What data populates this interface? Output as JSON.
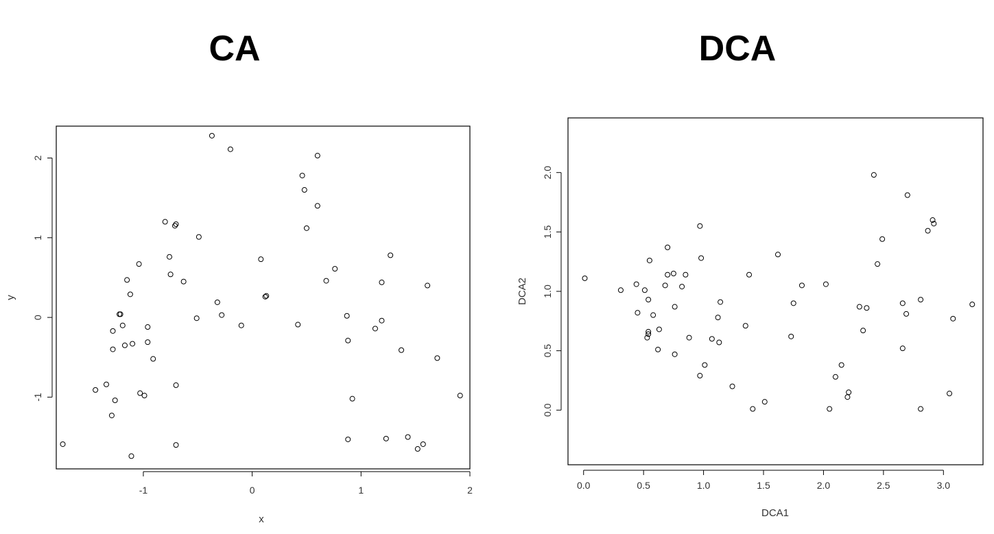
{
  "chart_data": [
    {
      "type": "scatter",
      "title": "CA",
      "xlabel": "x",
      "ylabel": "y",
      "xlim": [
        -1.8,
        2.0
      ],
      "ylim": [
        -1.9,
        2.4
      ],
      "xticks": [
        -1,
        0,
        1,
        2
      ],
      "xtick_labels": [
        "-1",
        "0",
        "1",
        "2"
      ],
      "yticks": [
        -1,
        0,
        1,
        2
      ],
      "ytick_labels": [
        "-1",
        "0",
        "1",
        "2"
      ],
      "grid": false,
      "points": [
        {
          "x": -0.37,
          "y": 2.28
        },
        {
          "x": -0.2,
          "y": 2.11
        },
        {
          "x": 0.6,
          "y": 2.03
        },
        {
          "x": 0.46,
          "y": 1.78
        },
        {
          "x": 0.48,
          "y": 1.6
        },
        {
          "x": 0.6,
          "y": 1.4
        },
        {
          "x": 0.5,
          "y": 1.12
        },
        {
          "x": -0.8,
          "y": 1.2
        },
        {
          "x": -0.7,
          "y": 1.17
        },
        {
          "x": -0.71,
          "y": 1.15
        },
        {
          "x": -0.49,
          "y": 1.01
        },
        {
          "x": -0.76,
          "y": 0.76
        },
        {
          "x": 0.08,
          "y": 0.73
        },
        {
          "x": 1.27,
          "y": 0.78
        },
        {
          "x": -1.04,
          "y": 0.67
        },
        {
          "x": 0.76,
          "y": 0.61
        },
        {
          "x": -0.75,
          "y": 0.54
        },
        {
          "x": -1.15,
          "y": 0.47
        },
        {
          "x": -0.63,
          "y": 0.45
        },
        {
          "x": 0.68,
          "y": 0.46
        },
        {
          "x": 1.19,
          "y": 0.44
        },
        {
          "x": 1.61,
          "y": 0.4
        },
        {
          "x": -1.12,
          "y": 0.29
        },
        {
          "x": 0.12,
          "y": 0.26
        },
        {
          "x": 0.13,
          "y": 0.27
        },
        {
          "x": -0.32,
          "y": 0.19
        },
        {
          "x": -1.22,
          "y": 0.04
        },
        {
          "x": -1.21,
          "y": 0.04
        },
        {
          "x": -0.28,
          "y": 0.03
        },
        {
          "x": 0.87,
          "y": 0.02
        },
        {
          "x": -0.51,
          "y": -0.01
        },
        {
          "x": 1.19,
          "y": -0.04
        },
        {
          "x": -1.19,
          "y": -0.1
        },
        {
          "x": -0.1,
          "y": -0.1
        },
        {
          "x": 0.42,
          "y": -0.09
        },
        {
          "x": -0.96,
          "y": -0.12
        },
        {
          "x": 1.13,
          "y": -0.14
        },
        {
          "x": -1.28,
          "y": -0.17
        },
        {
          "x": 0.88,
          "y": -0.29
        },
        {
          "x": -0.96,
          "y": -0.31
        },
        {
          "x": -1.1,
          "y": -0.33
        },
        {
          "x": -1.17,
          "y": -0.35
        },
        {
          "x": -1.28,
          "y": -0.4
        },
        {
          "x": 1.37,
          "y": -0.41
        },
        {
          "x": -0.91,
          "y": -0.52
        },
        {
          "x": 1.7,
          "y": -0.51
        },
        {
          "x": -1.34,
          "y": -0.84
        },
        {
          "x": -0.7,
          "y": -0.85
        },
        {
          "x": -1.44,
          "y": -0.91
        },
        {
          "x": -1.03,
          "y": -0.95
        },
        {
          "x": -0.99,
          "y": -0.98
        },
        {
          "x": 1.91,
          "y": -0.98
        },
        {
          "x": -1.26,
          "y": -1.04
        },
        {
          "x": 0.92,
          "y": -1.02
        },
        {
          "x": -1.29,
          "y": -1.23
        },
        {
          "x": 0.88,
          "y": -1.53
        },
        {
          "x": 1.23,
          "y": -1.52
        },
        {
          "x": 1.43,
          "y": -1.5
        },
        {
          "x": -1.74,
          "y": -1.59
        },
        {
          "x": -0.7,
          "y": -1.6
        },
        {
          "x": 1.57,
          "y": -1.59
        },
        {
          "x": 1.52,
          "y": -1.65
        },
        {
          "x": -1.11,
          "y": -1.74
        }
      ]
    },
    {
      "type": "scatter",
      "title": "DCA",
      "xlabel": "DCA1",
      "ylabel": "DCA2",
      "xlim": [
        -0.13,
        3.33
      ],
      "ylim": [
        -0.46,
        2.46
      ],
      "xticks": [
        0.0,
        0.5,
        1.0,
        1.5,
        2.0,
        2.5,
        3.0
      ],
      "xtick_labels": [
        "0.0",
        "0.5",
        "1.0",
        "1.5",
        "2.0",
        "2.5",
        "3.0"
      ],
      "yticks": [
        0.0,
        0.5,
        1.0,
        1.5,
        2.0
      ],
      "ytick_labels": [
        "0.0",
        "0.5",
        "1.0",
        "1.5",
        "2.0"
      ],
      "grid": false,
      "points": [
        {
          "x": 2.42,
          "y": 1.98
        },
        {
          "x": 2.7,
          "y": 1.81
        },
        {
          "x": 2.91,
          "y": 1.6
        },
        {
          "x": 2.92,
          "y": 1.57
        },
        {
          "x": 0.97,
          "y": 1.55
        },
        {
          "x": 2.87,
          "y": 1.51
        },
        {
          "x": 2.49,
          "y": 1.44
        },
        {
          "x": 0.7,
          "y": 1.37
        },
        {
          "x": 1.62,
          "y": 1.31
        },
        {
          "x": 0.98,
          "y": 1.28
        },
        {
          "x": 0.55,
          "y": 1.26
        },
        {
          "x": 2.45,
          "y": 1.23
        },
        {
          "x": 0.75,
          "y": 1.15
        },
        {
          "x": 0.7,
          "y": 1.14
        },
        {
          "x": 0.85,
          "y": 1.14
        },
        {
          "x": 1.38,
          "y": 1.14
        },
        {
          "x": 0.01,
          "y": 1.11
        },
        {
          "x": 0.44,
          "y": 1.06
        },
        {
          "x": 0.68,
          "y": 1.05
        },
        {
          "x": 1.82,
          "y": 1.05
        },
        {
          "x": 2.02,
          "y": 1.06
        },
        {
          "x": 0.82,
          "y": 1.04
        },
        {
          "x": 0.31,
          "y": 1.01
        },
        {
          "x": 0.51,
          "y": 1.01
        },
        {
          "x": 0.54,
          "y": 0.93
        },
        {
          "x": 2.81,
          "y": 0.93
        },
        {
          "x": 1.14,
          "y": 0.91
        },
        {
          "x": 1.75,
          "y": 0.9
        },
        {
          "x": 2.66,
          "y": 0.9
        },
        {
          "x": 3.24,
          "y": 0.89
        },
        {
          "x": 0.76,
          "y": 0.87
        },
        {
          "x": 2.3,
          "y": 0.87
        },
        {
          "x": 2.36,
          "y": 0.86
        },
        {
          "x": 0.45,
          "y": 0.82
        },
        {
          "x": 0.58,
          "y": 0.8
        },
        {
          "x": 2.69,
          "y": 0.81
        },
        {
          "x": 1.12,
          "y": 0.78
        },
        {
          "x": 3.08,
          "y": 0.77
        },
        {
          "x": 1.35,
          "y": 0.71
        },
        {
          "x": 0.63,
          "y": 0.68
        },
        {
          "x": 2.33,
          "y": 0.67
        },
        {
          "x": 0.54,
          "y": 0.66
        },
        {
          "x": 0.54,
          "y": 0.64
        },
        {
          "x": 1.73,
          "y": 0.62
        },
        {
          "x": 0.53,
          "y": 0.61
        },
        {
          "x": 0.88,
          "y": 0.61
        },
        {
          "x": 1.07,
          "y": 0.6
        },
        {
          "x": 1.13,
          "y": 0.57
        },
        {
          "x": 0.62,
          "y": 0.51
        },
        {
          "x": 2.66,
          "y": 0.52
        },
        {
          "x": 0.76,
          "y": 0.47
        },
        {
          "x": 1.01,
          "y": 0.38
        },
        {
          "x": 2.15,
          "y": 0.38
        },
        {
          "x": 0.97,
          "y": 0.29
        },
        {
          "x": 2.1,
          "y": 0.28
        },
        {
          "x": 1.24,
          "y": 0.2
        },
        {
          "x": 2.21,
          "y": 0.15
        },
        {
          "x": 3.05,
          "y": 0.14
        },
        {
          "x": 2.2,
          "y": 0.11
        },
        {
          "x": 1.51,
          "y": 0.07
        },
        {
          "x": 1.41,
          "y": 0.01
        },
        {
          "x": 2.05,
          "y": 0.01
        },
        {
          "x": 2.81,
          "y": 0.01
        }
      ]
    }
  ]
}
